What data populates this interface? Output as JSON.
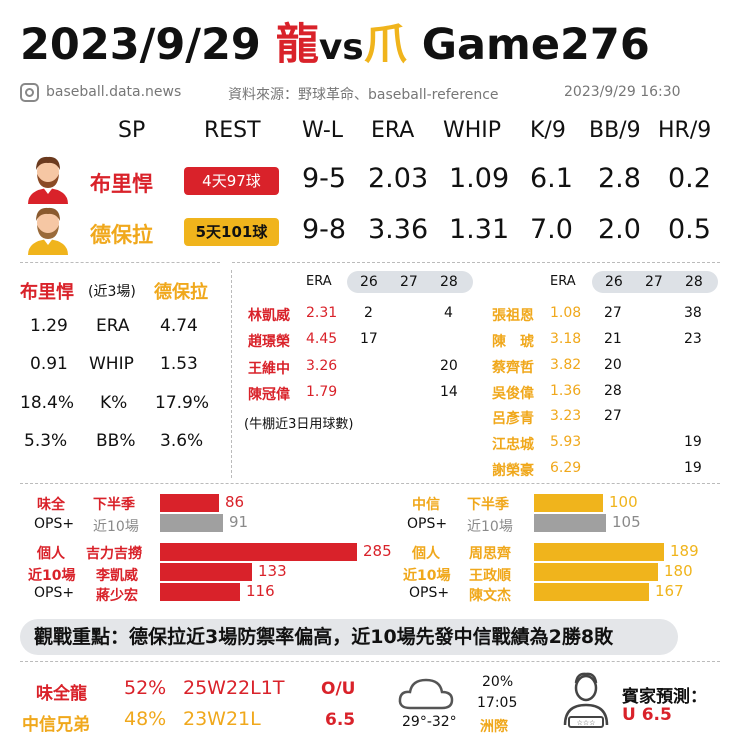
{
  "title": {
    "date": "2023/9/29",
    "team1": "龍",
    "vs": "vs",
    "team2": "爪",
    "game": "Game276"
  },
  "source": {
    "handle": "baseball.data.news",
    "credit": "資料來源：野球革命、baseball-reference",
    "datetime": "2023/9/29  16:30"
  },
  "headers": [
    "SP",
    "REST",
    "W-L",
    "ERA",
    "WHIP",
    "K/9",
    "BB/9",
    "HR/9"
  ],
  "pitchers": [
    {
      "name": "布里悍",
      "rest": "4天97球",
      "wl": "9-5",
      "era": "2.03",
      "whip": "1.09",
      "k9": "6.1",
      "bb9": "2.8",
      "hr9": "0.2"
    },
    {
      "name": "德保拉",
      "rest": "5天101球",
      "wl": "9-8",
      "era": "3.36",
      "whip": "1.31",
      "k9": "7.0",
      "bb9": "2.0",
      "hr9": "0.5"
    }
  ],
  "recent": {
    "left_name": "布里悍",
    "mid_label": "(近3場)",
    "right_name": "德保拉",
    "rows": [
      {
        "l": "1.29",
        "stat": "ERA",
        "r": "4.74"
      },
      {
        "l": "0.91",
        "stat": "WHIP",
        "r": "1.53"
      },
      {
        "l": "18.4%",
        "stat": "K%",
        "r": "17.9%"
      },
      {
        "l": "5.3%",
        "stat": "BB%",
        "r": "3.6%"
      }
    ]
  },
  "bullpen": {
    "era_label": "ERA",
    "days": [
      "26",
      "27",
      "28"
    ],
    "note": "(牛棚近3日用球數)",
    "left": [
      {
        "name": "林凱威",
        "era": "2.31",
        "d26": "2",
        "d27": "",
        "d28": "4"
      },
      {
        "name": "趙璟榮",
        "era": "4.45",
        "d26": "17",
        "d27": "",
        "d28": ""
      },
      {
        "name": "王維中",
        "era": "3.26",
        "d26": "",
        "d27": "",
        "d28": "20"
      },
      {
        "name": "陳冠偉",
        "era": "1.79",
        "d26": "",
        "d27": "",
        "d28": "14"
      }
    ],
    "right": [
      {
        "name": "張祖恩",
        "era": "1.08",
        "d26": "27",
        "d27": "",
        "d28": "38"
      },
      {
        "name": "陳　琥",
        "era": "3.18",
        "d26": "21",
        "d27": "",
        "d28": "23"
      },
      {
        "name": "蔡齊哲",
        "era": "3.82",
        "d26": "20",
        "d27": "",
        "d28": ""
      },
      {
        "name": "吳俊偉",
        "era": "1.36",
        "d26": "28",
        "d27": "",
        "d28": ""
      },
      {
        "name": "呂彥青",
        "era": "3.23",
        "d26": "27",
        "d27": "",
        "d28": ""
      },
      {
        "name": "江忠城",
        "era": "5.93",
        "d26": "",
        "d27": "",
        "d28": "19"
      },
      {
        "name": "謝榮豪",
        "era": "6.29",
        "d26": "",
        "d27": "",
        "d28": "19"
      }
    ]
  },
  "ops": {
    "left": {
      "team": "味全",
      "ops": "OPS+",
      "indiv": [
        "個人",
        "近10場",
        "OPS+"
      ],
      "team_rows": [
        {
          "label": "下半季",
          "value": 86
        },
        {
          "label": "近10場",
          "value": 91
        }
      ],
      "players": [
        {
          "name": "吉力吉撈",
          "value": 285
        },
        {
          "name": "李凱威",
          "value": 133
        },
        {
          "name": "蔣少宏",
          "value": 116
        }
      ]
    },
    "right": {
      "team": "中信",
      "ops": "OPS+",
      "indiv": [
        "個人",
        "近10場",
        "OPS+"
      ],
      "team_rows": [
        {
          "label": "下半季",
          "value": 100
        },
        {
          "label": "近10場",
          "value": 105
        }
      ],
      "players": [
        {
          "name": "周思齊",
          "value": 189
        },
        {
          "name": "王政順",
          "value": 180
        },
        {
          "name": "陳文杰",
          "value": 167
        }
      ]
    }
  },
  "keypoint": "觀戰重點：德保拉近3場防禦率偏高，近10場先發中信戰績為2勝8敗",
  "bottom": {
    "teams": [
      {
        "name": "味全龍",
        "pct": "52%",
        "record": "25W22L1T"
      },
      {
        "name": "中信兄弟",
        "pct": "48%",
        "record": "23W21L"
      }
    ],
    "ou_label": "O/U",
    "ou_value": "6.5",
    "weather": {
      "temp": "29°-32°",
      "rain": "20%",
      "time": "17:05",
      "place": "洲際"
    },
    "predict_label": "賓家預測：",
    "predict_value": "U  6.5"
  },
  "colors": {
    "red": "#d9222a",
    "gold": "#f0b41c",
    "grey": "#a0a0a0"
  }
}
